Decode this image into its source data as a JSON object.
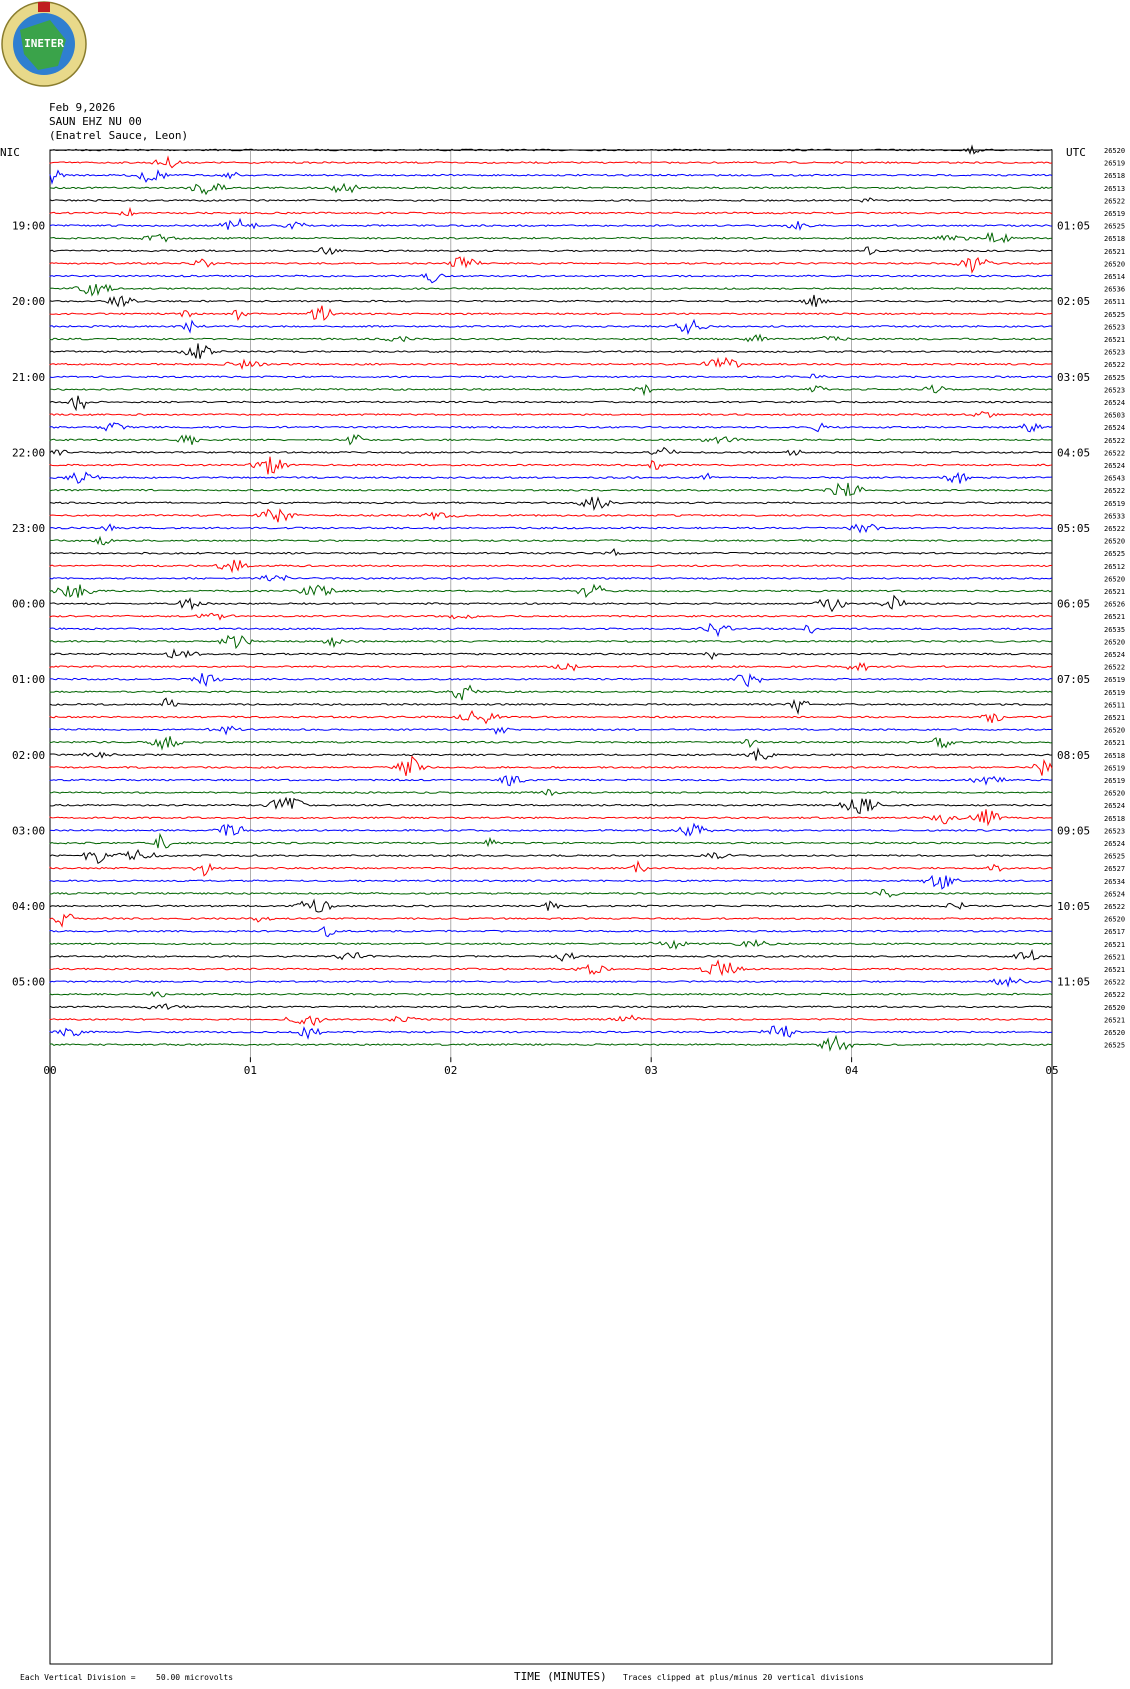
{
  "logo": {
    "text": "INETER"
  },
  "header": {
    "date": "Feb 9,2026",
    "station": "SAUN EHZ NU 00",
    "location": "(Enatrel Sauce, Leon)"
  },
  "left_zone_label": "NIC",
  "right_zone_label": "UTC",
  "footer": {
    "scale_note": "Each Vertical Division =",
    "scale_value": "50.00 microvolts",
    "xlabel": "TIME (MINUTES)",
    "clip_note": "Traces clipped at plus/minus 20 vertical divisions"
  },
  "colors": {
    "trace_cycle": [
      "#000000",
      "#ff0000",
      "#0000ff",
      "#006400"
    ],
    "gridline": "#9a9a9a"
  },
  "chart_data": {
    "type": "line",
    "title": "SAUN EHZ NU 00",
    "xlabel": "TIME (MINUTES)",
    "xlim": [
      0,
      5
    ],
    "x_ticks": [
      "00",
      "01",
      "02",
      "03",
      "04",
      "05"
    ],
    "trace_count": 72,
    "minutes_per_trace": 5,
    "left_hour_labels": [
      "19:00",
      "20:00",
      "21:00",
      "22:00",
      "23:00",
      "00:00",
      "01:00",
      "02:00",
      "03:00",
      "04:00",
      "05:00"
    ],
    "right_hour_labels": [
      "01:05",
      "02:05",
      "03:05",
      "04:05",
      "05:05",
      "06:05",
      "07:05",
      "08:05",
      "09:05",
      "10:05",
      "11:05"
    ],
    "clip_values": [
      "26520",
      "26519",
      "26518",
      "26513",
      "26522",
      "26519",
      "26525",
      "26518",
      "26521",
      "26520",
      "26514",
      "26536",
      "26511",
      "26525",
      "26523",
      "26521",
      "26523",
      "26522",
      "26525",
      "26523",
      "26524",
      "26503",
      "26524",
      "26522",
      "26522",
      "26524",
      "26543",
      "26522",
      "26519",
      "26533",
      "26522",
      "26520",
      "26525",
      "26512",
      "26520",
      "26521",
      "26526",
      "26521",
      "26535",
      "26520",
      "26524",
      "26522",
      "26519",
      "26519",
      "26511",
      "26521",
      "26520",
      "26521",
      "26518",
      "26519",
      "26519",
      "26520",
      "26524",
      "26518",
      "26523",
      "26524",
      "26525",
      "26527",
      "26534",
      "26524",
      "26522",
      "26520",
      "26517",
      "26521",
      "26521",
      "26521",
      "26522",
      "26522",
      "26520",
      "26521",
      "26520",
      "26525"
    ]
  }
}
